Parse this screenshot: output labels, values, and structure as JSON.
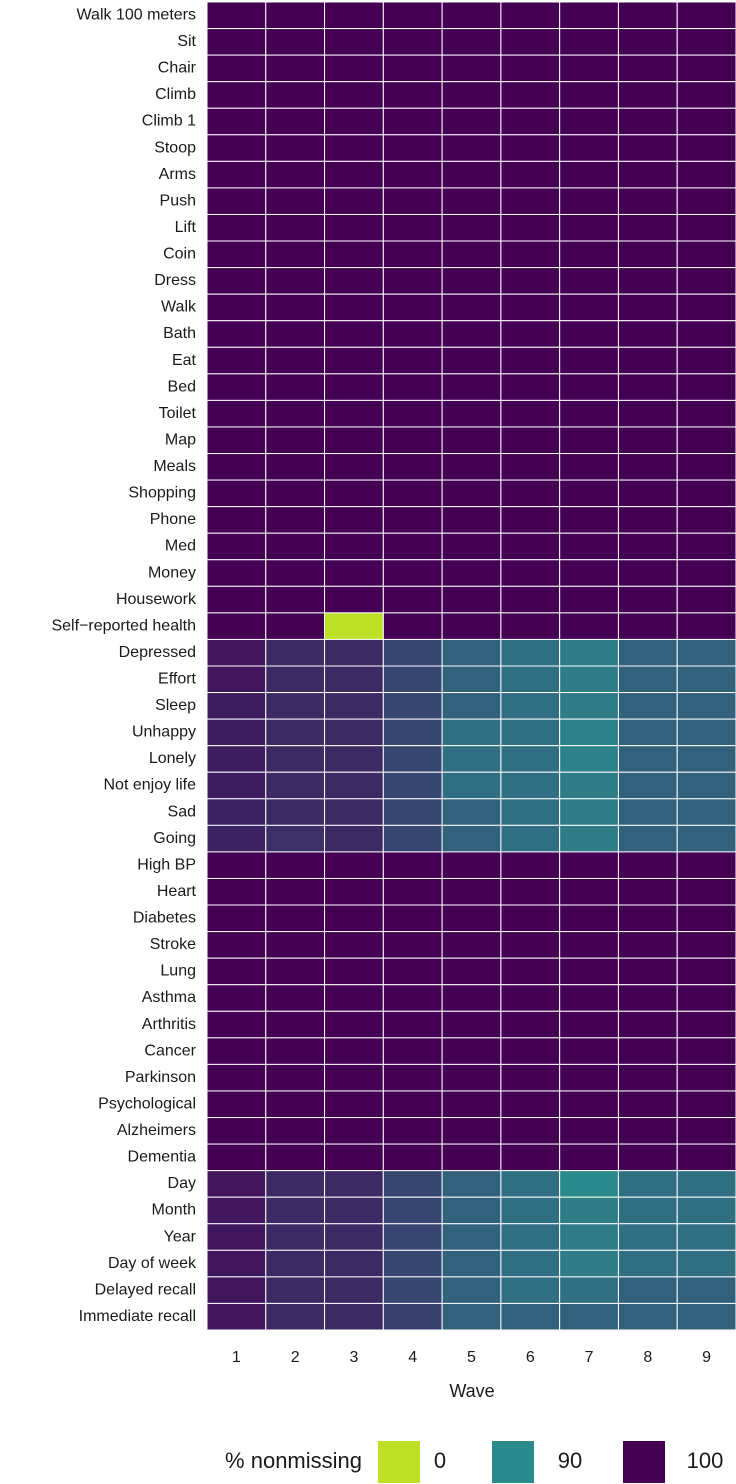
{
  "chart_data": {
    "type": "heatmap",
    "x_label": "Wave",
    "x": [
      1,
      2,
      3,
      4,
      5,
      6,
      7,
      8,
      9
    ],
    "categories": [
      "Walk 100 meters",
      "Sit",
      "Chair",
      "Climb",
      "Climb 1",
      "Stoop",
      "Arms",
      "Push",
      "Lift",
      "Coin",
      "Dress",
      "Walk",
      "Bath",
      "Eat",
      "Bed",
      "Toilet",
      "Map",
      "Meals",
      "Shopping",
      "Phone",
      "Med",
      "Money",
      "Housework",
      "Self−reported health",
      "Depressed",
      "Effort",
      "Sleep",
      "Unhappy",
      "Lonely",
      "Not enjoy life",
      "Sad",
      "Going",
      "High BP",
      "Heart",
      "Diabetes",
      "Stroke",
      "Lung",
      "Asthma",
      "Arthritis",
      "Cancer",
      "Parkinson",
      "Psychological",
      "Alzheimers",
      "Dementia",
      "Day",
      "Month",
      "Year",
      "Day of week",
      "Delayed recall",
      "Immediate recall"
    ],
    "values": [
      [
        100,
        100,
        100,
        100,
        100,
        100,
        100,
        100,
        100
      ],
      [
        100,
        100,
        100,
        100,
        100,
        100,
        100,
        100,
        100
      ],
      [
        100,
        100,
        100,
        100,
        100,
        100,
        100,
        100,
        100
      ],
      [
        100,
        100,
        100,
        100,
        100,
        100,
        100,
        100,
        100
      ],
      [
        100,
        100,
        100,
        100,
        100,
        100,
        100,
        100,
        100
      ],
      [
        100,
        100,
        100,
        100,
        100,
        100,
        100,
        100,
        100
      ],
      [
        100,
        100,
        100,
        100,
        100,
        100,
        100,
        100,
        100
      ],
      [
        100,
        100,
        100,
        100,
        100,
        100,
        100,
        100,
        100
      ],
      [
        100,
        100,
        100,
        100,
        100,
        100,
        100,
        100,
        100
      ],
      [
        100,
        100,
        100,
        100,
        100,
        100,
        100,
        100,
        100
      ],
      [
        100,
        100,
        100,
        100,
        100,
        100,
        100,
        100,
        100
      ],
      [
        100,
        100,
        100,
        100,
        100,
        100,
        100,
        100,
        100
      ],
      [
        100,
        100,
        100,
        100,
        100,
        100,
        100,
        100,
        100
      ],
      [
        100,
        100,
        100,
        100,
        100,
        100,
        100,
        100,
        100
      ],
      [
        100,
        100,
        100,
        100,
        100,
        100,
        100,
        100,
        100
      ],
      [
        100,
        100,
        100,
        100,
        100,
        100,
        100,
        100,
        100
      ],
      [
        100,
        100,
        100,
        100,
        100,
        100,
        100,
        100,
        100
      ],
      [
        100,
        100,
        100,
        100,
        100,
        100,
        100,
        100,
        100
      ],
      [
        100,
        100,
        100,
        100,
        100,
        100,
        100,
        100,
        100
      ],
      [
        100,
        100,
        100,
        100,
        100,
        100,
        100,
        100,
        100
      ],
      [
        100,
        100,
        100,
        100,
        100,
        100,
        100,
        100,
        100
      ],
      [
        100,
        100,
        100,
        100,
        100,
        100,
        100,
        100,
        100
      ],
      [
        100,
        100,
        100,
        100,
        100,
        100,
        100,
        100,
        100
      ],
      [
        100,
        100,
        0,
        100,
        100,
        100,
        100,
        100,
        100
      ],
      [
        98.5,
        97,
        97,
        95,
        93,
        92,
        91,
        93,
        93
      ],
      [
        98.5,
        97,
        97,
        95,
        93,
        92,
        91,
        93,
        93
      ],
      [
        98,
        97,
        97,
        95,
        93,
        92,
        91,
        93,
        93
      ],
      [
        98,
        97,
        97,
        95,
        92,
        92,
        90.5,
        93,
        93
      ],
      [
        98,
        97,
        97,
        95,
        92,
        92,
        90.5,
        93,
        93
      ],
      [
        98,
        97,
        97,
        95,
        92,
        92,
        91,
        93,
        93
      ],
      [
        97.5,
        97,
        97,
        95,
        93,
        92,
        91,
        93,
        93
      ],
      [
        97.5,
        96.5,
        97,
        95,
        93,
        92,
        91,
        93,
        93
      ],
      [
        100,
        100,
        100,
        100,
        100,
        100,
        100,
        100,
        100
      ],
      [
        100,
        100,
        100,
        100,
        100,
        100,
        100,
        100,
        100
      ],
      [
        100,
        100,
        100,
        100,
        100,
        100,
        100,
        100,
        100
      ],
      [
        100,
        100,
        100,
        100,
        100,
        100,
        100,
        100,
        100
      ],
      [
        100,
        100,
        100,
        100,
        100,
        100,
        100,
        100,
        100
      ],
      [
        100,
        100,
        100,
        100,
        100,
        100,
        100,
        100,
        100
      ],
      [
        100,
        100,
        100,
        100,
        100,
        100,
        100,
        100,
        100
      ],
      [
        100,
        100,
        100,
        100,
        100,
        100,
        100,
        100,
        100
      ],
      [
        100,
        100,
        100,
        100,
        100,
        100,
        100,
        100,
        100
      ],
      [
        100,
        100,
        100,
        100,
        100,
        100,
        100,
        100,
        100
      ],
      [
        100,
        100,
        100,
        100,
        100,
        100,
        100,
        100,
        100
      ],
      [
        100,
        100,
        100,
        100,
        100,
        100,
        100,
        100,
        100
      ],
      [
        98.5,
        97,
        97,
        95,
        93,
        92,
        90,
        92,
        92
      ],
      [
        98.5,
        97,
        97,
        95,
        93,
        92,
        91,
        92,
        92
      ],
      [
        98.5,
        97,
        97,
        95,
        93,
        92,
        91,
        92,
        92
      ],
      [
        98.5,
        97,
        97,
        95,
        93,
        92,
        91,
        92,
        92
      ],
      [
        98.5,
        97,
        97,
        95,
        93,
        92,
        92,
        93,
        93
      ],
      [
        98.5,
        97,
        97,
        95.5,
        93,
        93,
        93,
        93,
        93
      ]
    ],
    "legend": {
      "title": "% nonmissing",
      "items": [
        {
          "value": 0,
          "color": "#bddf26"
        },
        {
          "value": 90,
          "color": "#2a8a8c"
        },
        {
          "value": 100,
          "color": "#440154"
        }
      ]
    }
  }
}
